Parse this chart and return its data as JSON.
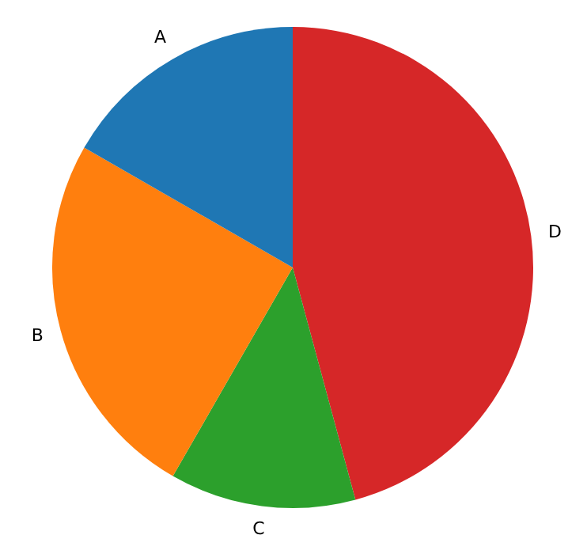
{
  "chart_data": {
    "type": "pie",
    "categories": [
      "A",
      "B",
      "C",
      "D"
    ],
    "values": [
      16.7,
      25,
      12.5,
      45.8
    ],
    "colors": [
      "#1f77b4",
      "#ff7f0e",
      "#2ca02c",
      "#d62728"
    ],
    "legend": false
  }
}
